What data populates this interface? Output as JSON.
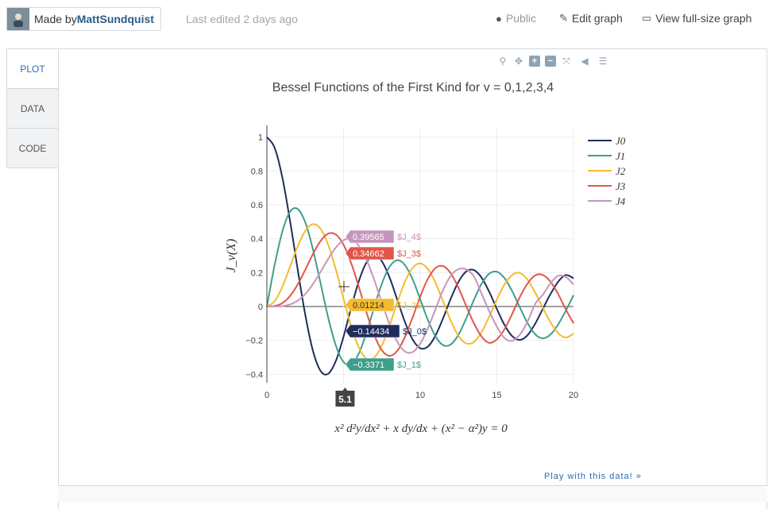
{
  "header": {
    "made_by": "Made by ",
    "author": "MattSundquist",
    "last_edited": "Last edited 2 days ago",
    "public_label": "Public",
    "edit_label": "Edit graph",
    "view_label": "View full-size graph",
    "public_icon": "globe-icon",
    "edit_icon": "pencil-icon",
    "view_icon": "monitor-icon"
  },
  "tabs": [
    "PLOT",
    "DATA",
    "CODE"
  ],
  "footer": {
    "play": "Play with this data! »"
  },
  "chart_data": {
    "type": "line",
    "title": "Bessel Functions of the First Kind for v = 0,1,2,3,4",
    "xlabel": "",
    "ylabel": "J_v(X)",
    "equation": "x² d²y/dx² + x dy/dx + (x² − α²)y = 0",
    "xlim": [
      0,
      20
    ],
    "ylim": [
      -0.45,
      1.05
    ],
    "xticks": [
      0,
      5,
      10,
      15,
      20
    ],
    "xtick_labels": [
      "0",
      "",
      "10",
      "15",
      "20"
    ],
    "yticks": [
      -0.4,
      -0.2,
      0,
      0.2,
      0.4,
      0.6,
      0.8,
      1
    ],
    "ytick_labels": [
      "−0.4",
      "−0.2",
      "0",
      "0.2",
      "0.4",
      "0.6",
      "0.8",
      "1"
    ],
    "grid": true,
    "legend_position": "top-right",
    "x": [
      0,
      0.5,
      1,
      1.5,
      2,
      2.5,
      3,
      3.5,
      4,
      4.5,
      5,
      5.5,
      6,
      6.5,
      7,
      7.5,
      8,
      8.5,
      9,
      9.5,
      10,
      10.5,
      11,
      11.5,
      12,
      12.5,
      13,
      13.5,
      14,
      14.5,
      15,
      15.5,
      16,
      16.5,
      17,
      17.5,
      18,
      18.5,
      19,
      19.5,
      20
    ],
    "series": [
      {
        "name": "J0",
        "color": "#1f2d5c",
        "values": [
          1,
          0.9385,
          0.7652,
          0.5118,
          0.2239,
          -0.0484,
          -0.2601,
          -0.3801,
          -0.3971,
          -0.3205,
          -0.1776,
          -0.0068,
          0.1506,
          0.2601,
          0.3001,
          0.2663,
          0.1717,
          0.0419,
          -0.0903,
          -0.1939,
          -0.2459,
          -0.2366,
          -0.1712,
          -0.0677,
          0.0477,
          0.1469,
          0.2069,
          0.215,
          0.1711,
          0.0875,
          -0.0142,
          -0.1092,
          -0.1749,
          -0.1973,
          -0.1699,
          -0.1014,
          -0.0134,
          0.0736,
          0.1466,
          0.1855,
          0.167
        ]
      },
      {
        "name": "J1",
        "color": "#3f9e8a",
        "values": [
          0,
          0.2423,
          0.4401,
          0.5579,
          0.5767,
          0.4971,
          0.3391,
          0.1374,
          -0.066,
          -0.2311,
          -0.3276,
          -0.3414,
          -0.2767,
          -0.1538,
          -0.0047,
          0.1352,
          0.2346,
          0.2731,
          0.2453,
          0.1613,
          0.0435,
          -0.0789,
          -0.1768,
          -0.2284,
          -0.2234,
          -0.1655,
          -0.0703,
          0.038,
          0.1334,
          0.1934,
          0.2051,
          0.1672,
          0.0904,
          -0.0057,
          -0.0977,
          -0.1638,
          -0.188,
          -0.1655,
          -0.1057,
          -0.0247,
          0.0668
        ]
      },
      {
        "name": "J2",
        "color": "#f4bb2f",
        "values": [
          0,
          0.0306,
          0.1149,
          0.2321,
          0.3528,
          0.4461,
          0.4861,
          0.4586,
          0.3641,
          0.2178,
          0.0466,
          -0.1173,
          -0.2429,
          -0.3074,
          -0.3014,
          -0.2303,
          -0.113,
          0.0223,
          0.1448,
          0.2279,
          0.2546,
          0.2216,
          0.139,
          0.0279,
          -0.0849,
          -0.1734,
          -0.2177,
          -0.2094,
          -0.152,
          -0.0608,
          0.0416,
          0.1308,
          0.1862,
          0.198,
          0.1584,
          0.0827,
          -0.0075,
          -0.0929,
          -0.1577,
          -0.1829,
          -0.1603
        ]
      },
      {
        "name": "J3",
        "color": "#e0574a",
        "values": [
          0,
          0.0026,
          0.0196,
          0.061,
          0.1289,
          0.2166,
          0.3091,
          0.3868,
          0.4302,
          0.4247,
          0.3648,
          0.2561,
          0.1148,
          -0.0353,
          -0.1676,
          -0.2581,
          -0.2911,
          -0.2626,
          -0.1809,
          -0.0653,
          0.0584,
          0.1633,
          0.2273,
          0.2381,
          0.1951,
          0.1099,
          0.0033,
          -0.0978,
          -0.1768,
          -0.2147,
          -0.194,
          -0.1335,
          -0.0438,
          0.0563,
          0.1349,
          0.1839,
          0.1863,
          0.1469,
          0.0735,
          -0.0175,
          -0.0989
        ]
      },
      {
        "name": "J4",
        "color": "#c795bc",
        "values": [
          0,
          0.0002,
          0.0025,
          0.0118,
          0.034,
          0.0738,
          0.132,
          0.2044,
          0.2811,
          0.3484,
          0.3912,
          0.3967,
          0.3576,
          0.2748,
          0.1578,
          0.0238,
          -0.1054,
          -0.2077,
          -0.2655,
          -0.2691,
          -0.2196,
          -0.1292,
          -0.015,
          0.0993,
          0.1825,
          0.221,
          0.2193,
          0.178,
          0.0762,
          -0.0268,
          -0.1192,
          -0.1862,
          -0.2026,
          -0.166,
          -0.0897,
          0.015,
          0.0699,
          0.1368,
          0.182,
          0.1738,
          0.1307
        ]
      }
    ],
    "hover": {
      "x_label": "5.1",
      "labels": [
        {
          "value": "0.39565",
          "name": "$J_4$",
          "color": "#c795bc",
          "y": 0.39565
        },
        {
          "value": "0.34662",
          "name": "$J_3$",
          "color": "#e0574a",
          "y": 0.34662
        },
        {
          "value": "0.01214",
          "name": "$J_2$",
          "color": "#f4bb2f",
          "y": 0.01214
        },
        {
          "value": "−0.14434",
          "name": "$J_0$",
          "color": "#1f2d5c",
          "y": -0.14434
        },
        {
          "value": "−0.3371",
          "name": "$J_1$",
          "color": "#3f9e8a",
          "y": -0.3371
        }
      ]
    }
  }
}
